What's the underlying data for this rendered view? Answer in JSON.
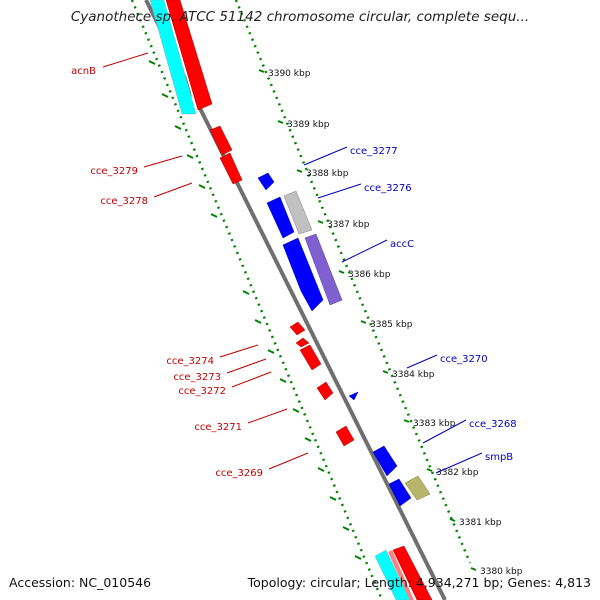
{
  "title": "Cyanothece sp. ATCC 51142 chromosome circular, complete sequ...",
  "footer": {
    "accession": "Accession: NC_010546",
    "topology": "Topology: circular; Length: 4,934,271 bp; Genes: 4,813"
  },
  "colors": {
    "forward_gene": "#ff0000",
    "reverse_gene": "#0000ff",
    "forward_label": "#c00000",
    "reverse_label": "#0000c0",
    "backbone": "#808080",
    "ruler": "#008000",
    "rrna": "#00ffff",
    "trna": "#c0c0c0",
    "misc_feature": "#7f5fd0",
    "other_feature": "#b5b46a"
  },
  "scale_ticks": [
    {
      "label": "3390 kbp"
    },
    {
      "label": "3389 kbp"
    },
    {
      "label": "3388 kbp"
    },
    {
      "label": "3387 kbp"
    },
    {
      "label": "3386 kbp"
    },
    {
      "label": "3385 kbp"
    },
    {
      "label": "3384 kbp"
    },
    {
      "label": "3383 kbp"
    },
    {
      "label": "3382 kbp"
    },
    {
      "label": "3381 kbp"
    },
    {
      "label": "3380 kbp"
    }
  ],
  "forward_labels": [
    "acnB",
    "cce_3279",
    "cce_3278",
    "cce_3274",
    "cce_3273",
    "cce_3272",
    "cce_3271",
    "cce_3269"
  ],
  "reverse_labels": [
    "cce_3277",
    "cce_3276",
    "accC",
    "cce_3270",
    "cce_3268",
    "smpB"
  ]
}
